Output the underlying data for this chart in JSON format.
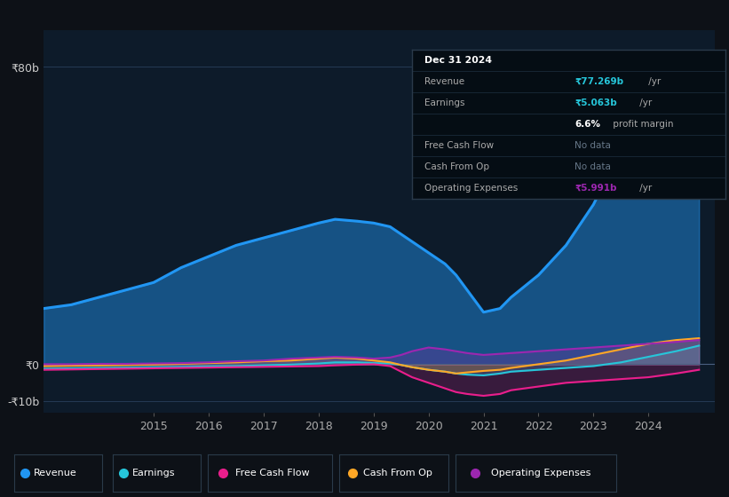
{
  "bg_color": "#0d1117",
  "plot_bg_color": "#0d1b2a",
  "grid_color": "#253a55",
  "years": [
    2013.0,
    2013.5,
    2014.0,
    2014.5,
    2015.0,
    2015.5,
    2016.0,
    2016.5,
    2017.0,
    2017.5,
    2018.0,
    2018.3,
    2018.7,
    2019.0,
    2019.3,
    2019.5,
    2019.7,
    2020.0,
    2020.3,
    2020.5,
    2020.7,
    2021.0,
    2021.3,
    2021.5,
    2022.0,
    2022.5,
    2023.0,
    2023.5,
    2024.0,
    2024.5,
    2024.92
  ],
  "revenue": [
    15,
    16,
    18,
    20,
    22,
    26,
    29,
    32,
    34,
    36,
    38,
    39,
    38.5,
    38,
    37,
    35,
    33,
    30,
    27,
    24,
    20,
    14,
    15,
    18,
    24,
    32,
    43,
    58,
    68,
    74,
    77
  ],
  "earnings": [
    -1.2,
    -1.1,
    -1.0,
    -0.9,
    -0.8,
    -0.7,
    -0.6,
    -0.5,
    -0.3,
    -0.1,
    0.2,
    0.5,
    0.5,
    0.3,
    0.2,
    -0.2,
    -0.8,
    -1.5,
    -2.0,
    -2.5,
    -2.8,
    -3.0,
    -2.5,
    -2.0,
    -1.5,
    -1.0,
    -0.5,
    0.5,
    2.0,
    3.5,
    5.0
  ],
  "free_cash_flow": [
    -1.5,
    -1.4,
    -1.3,
    -1.2,
    -1.1,
    -1.0,
    -0.9,
    -0.8,
    -0.7,
    -0.6,
    -0.5,
    -0.3,
    -0.1,
    0.0,
    -0.5,
    -2.0,
    -3.5,
    -5.0,
    -6.5,
    -7.5,
    -8.0,
    -8.5,
    -8.0,
    -7.0,
    -6.0,
    -5.0,
    -4.5,
    -4.0,
    -3.5,
    -2.5,
    -1.5
  ],
  "cash_from_op": [
    -0.5,
    -0.4,
    -0.3,
    -0.2,
    -0.1,
    0.1,
    0.3,
    0.5,
    0.8,
    1.0,
    1.5,
    1.8,
    1.5,
    1.0,
    0.5,
    -0.2,
    -0.8,
    -1.5,
    -2.0,
    -2.5,
    -2.2,
    -1.8,
    -1.5,
    -1.0,
    0.0,
    1.0,
    2.5,
    4.0,
    5.5,
    6.5,
    7.0
  ],
  "op_expenses": [
    0.0,
    0.0,
    0.1,
    0.1,
    0.2,
    0.3,
    0.5,
    0.8,
    1.0,
    1.5,
    1.8,
    2.0,
    1.8,
    1.5,
    1.8,
    2.5,
    3.5,
    4.5,
    4.0,
    3.5,
    3.0,
    2.5,
    2.8,
    3.0,
    3.5,
    4.0,
    4.5,
    5.0,
    5.5,
    6.0,
    6.5
  ],
  "revenue_color": "#2196f3",
  "earnings_color": "#26c6da",
  "free_cash_flow_color": "#e91e8c",
  "cash_from_op_color": "#ffa726",
  "op_expenses_color": "#9c27b0",
  "ylabel_80b": "₹80b",
  "ylabel_0": "₹0",
  "ylabel_n10b": "-₹10b",
  "x_ticks": [
    2015,
    2016,
    2017,
    2018,
    2019,
    2020,
    2021,
    2022,
    2023,
    2024
  ],
  "ylim_min": -13,
  "ylim_max": 90,
  "xmin": 2013.0,
  "xmax": 2025.2,
  "legend_labels": [
    "Revenue",
    "Earnings",
    "Free Cash Flow",
    "Cash From Op",
    "Operating Expenses"
  ],
  "legend_colors": [
    "#2196f3",
    "#26c6da",
    "#e91e8c",
    "#ffa726",
    "#9c27b0"
  ]
}
